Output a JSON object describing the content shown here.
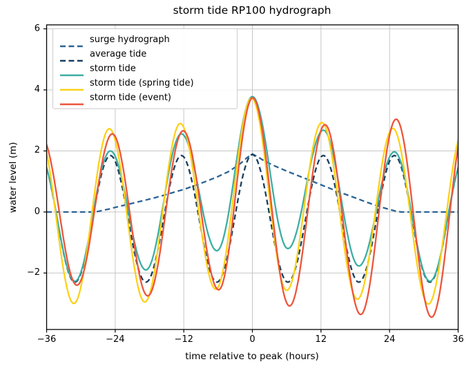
{
  "chart_data": {
    "type": "line",
    "title": "storm tide RP100 hydrograph",
    "xlabel": "time relative to peak (hours)",
    "ylabel": "water level (m)",
    "xlim": [
      -36,
      36
    ],
    "ylim": [
      -3.85,
      6.13
    ],
    "grid": true,
    "legend_position": "upper left",
    "xticks": [
      {
        "v": -36,
        "label": "−36"
      },
      {
        "v": -24,
        "label": "−24"
      },
      {
        "v": -12,
        "label": "−12"
      },
      {
        "v": 0,
        "label": "0"
      },
      {
        "v": 12,
        "label": "12"
      },
      {
        "v": 24,
        "label": "24"
      },
      {
        "v": 36,
        "label": "36"
      }
    ],
    "yticks": [
      {
        "v": 6,
        "label": "6"
      },
      {
        "v": 4,
        "label": "4"
      },
      {
        "v": 2,
        "label": "2"
      },
      {
        "v": 0,
        "label": "0"
      },
      {
        "v": -2,
        "label": "−2"
      }
    ],
    "series": [
      {
        "name": "surge hydrograph",
        "color": "#2b6395",
        "style": "dashed",
        "interp": "linear",
        "points": [
          [
            -36,
            0
          ],
          [
            -28,
            0
          ],
          [
            -27,
            0.02
          ],
          [
            -26,
            0.06
          ],
          [
            -25,
            0.1
          ],
          [
            -24,
            0.15
          ],
          [
            -22,
            0.24
          ],
          [
            -20,
            0.33
          ],
          [
            -18,
            0.42
          ],
          [
            -16,
            0.52
          ],
          [
            -14,
            0.63
          ],
          [
            -12,
            0.74
          ],
          [
            -10,
            0.87
          ],
          [
            -8,
            1.01
          ],
          [
            -6,
            1.16
          ],
          [
            -4,
            1.34
          ],
          [
            -2,
            1.6
          ],
          [
            -1,
            1.77
          ],
          [
            -0.5,
            1.84
          ],
          [
            0,
            1.9
          ],
          [
            0.5,
            1.85
          ],
          [
            1,
            1.8
          ],
          [
            2,
            1.68
          ],
          [
            4,
            1.5
          ],
          [
            6,
            1.34
          ],
          [
            8,
            1.19
          ],
          [
            10,
            1.04
          ],
          [
            12,
            0.89
          ],
          [
            14,
            0.74
          ],
          [
            16,
            0.6
          ],
          [
            18,
            0.46
          ],
          [
            20,
            0.32
          ],
          [
            22,
            0.19
          ],
          [
            24,
            0.08
          ],
          [
            25,
            0.03
          ],
          [
            26,
            0
          ],
          [
            28,
            0
          ],
          [
            36,
            0
          ]
        ]
      },
      {
        "name": "average tide",
        "color": "#173f5f",
        "style": "dashed",
        "interp": "cosine",
        "points": [
          [
            -37.26,
            1.85
          ],
          [
            -31.05,
            -2.3
          ],
          [
            -24.84,
            1.85
          ],
          [
            -18.63,
            -2.3
          ],
          [
            -12.42,
            1.85
          ],
          [
            -6.21,
            -2.3
          ],
          [
            0,
            1.88
          ],
          [
            6.21,
            -2.3
          ],
          [
            12.42,
            1.85
          ],
          [
            18.63,
            -2.3
          ],
          [
            24.84,
            1.85
          ],
          [
            31.05,
            -2.3
          ],
          [
            37.26,
            1.85
          ]
        ]
      },
      {
        "name": "storm tide",
        "color": "#3caea3",
        "style": "solid",
        "interp": "cosine",
        "points": [
          [
            -37.26,
            1.85
          ],
          [
            -31.05,
            -2.27
          ],
          [
            -24.84,
            2.0
          ],
          [
            -18.63,
            -1.9
          ],
          [
            -12.42,
            2.56
          ],
          [
            -6.21,
            -1.27
          ],
          [
            0,
            3.78
          ],
          [
            6.21,
            -1.2
          ],
          [
            12.42,
            2.68
          ],
          [
            18.63,
            -1.77
          ],
          [
            24.84,
            1.97
          ],
          [
            31.05,
            -2.27
          ],
          [
            37.26,
            1.85
          ]
        ]
      },
      {
        "name": "storm tide (spring tide)",
        "color": "#fdd117",
        "style": "solid",
        "interp": "cosine",
        "points": [
          [
            -37.45,
            2.7
          ],
          [
            -31.24,
            -3.0
          ],
          [
            -25.03,
            2.73
          ],
          [
            -18.82,
            -2.95
          ],
          [
            -12.61,
            2.9
          ],
          [
            -6.4,
            -2.53
          ],
          [
            -0.15,
            3.73
          ],
          [
            6.0,
            -2.57
          ],
          [
            12.15,
            2.93
          ],
          [
            18.36,
            -2.86
          ],
          [
            24.57,
            2.74
          ],
          [
            30.78,
            -3.02
          ],
          [
            36.99,
            2.7
          ]
        ]
      },
      {
        "name": "storm tide (event)",
        "color": "#ed553b",
        "style": "solid",
        "interp": "cosine",
        "points": [
          [
            -36.9,
            2.45
          ],
          [
            -30.7,
            -2.4
          ],
          [
            -24.5,
            2.56
          ],
          [
            -18.3,
            -2.75
          ],
          [
            -12.1,
            2.66
          ],
          [
            -5.9,
            -2.55
          ],
          [
            0.05,
            3.74
          ],
          [
            6.5,
            -3.08
          ],
          [
            12.7,
            2.86
          ],
          [
            18.95,
            -3.36
          ],
          [
            25.15,
            3.04
          ],
          [
            31.35,
            -3.45
          ],
          [
            37.56,
            3.1
          ]
        ]
      }
    ],
    "colors": {
      "background": "#ffffff",
      "grid": "#c6c6c6",
      "spine": "#000000",
      "text": "#000000"
    }
  }
}
